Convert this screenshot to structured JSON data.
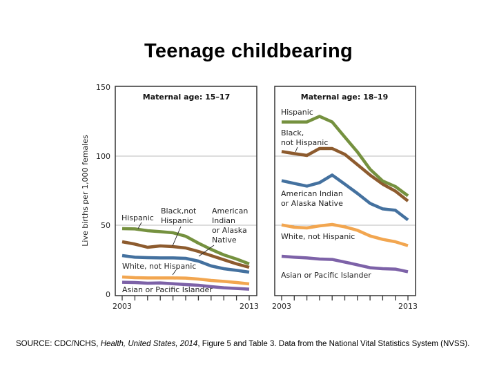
{
  "title": "Teenage childbearing",
  "source": {
    "prefix": "SOURCE: CDC/NCHS, ",
    "italic": "Health, United States, 2014",
    "suffix": ", Figure 5 and Table 3. Data from the National Vital Statistics System (NVSS)."
  },
  "colors": {
    "Hispanic": "#75913f",
    "Black": "#8d5b2e",
    "AIAN": "#44719f",
    "White": "#f2a650",
    "Asian": "#7d62a8"
  },
  "chart_data": [
    {
      "type": "line",
      "title": "Maternal age: 15–17",
      "ylabel": "Live births per 1,000 females",
      "ylim": [
        0,
        150
      ],
      "yticks": [
        "0",
        "50",
        "100",
        "150"
      ],
      "x": [
        2003,
        2004,
        2005,
        2006,
        2007,
        2008,
        2009,
        2010,
        2011,
        2012,
        2013
      ],
      "xtick_labels": [
        "2003",
        "2013"
      ],
      "grid": "horizontal at 50 and 100",
      "series": [
        {
          "key": "Hispanic",
          "label": [
            "Hispanic"
          ],
          "values": [
            47.5,
            47.3,
            46,
            45.3,
            44.5,
            42,
            37,
            32.5,
            28.5,
            25.5,
            22
          ]
        },
        {
          "key": "Black",
          "label": [
            "Black,not",
            "Hispanic"
          ],
          "values": [
            38,
            36.3,
            34,
            35,
            34.5,
            33.5,
            31,
            28,
            25,
            22,
            19.5
          ]
        },
        {
          "key": "AIAN",
          "label": [
            "American",
            "Indian",
            "or Alaska",
            "Native"
          ],
          "values": [
            28,
            26.8,
            26.5,
            26.3,
            26.3,
            26,
            24,
            20.5,
            18.5,
            17.3,
            16
          ]
        },
        {
          "key": "White",
          "label": [
            "White, not Hispanic"
          ],
          "values": [
            12.5,
            12,
            11.8,
            11.8,
            11.8,
            11.7,
            11,
            10,
            9.3,
            8.5,
            7.5
          ]
        },
        {
          "key": "Asian",
          "label": [
            "Asian or Pacific Islander"
          ],
          "values": [
            8.7,
            8.5,
            8,
            8.2,
            7.6,
            7,
            6.5,
            5.5,
            4.7,
            4.2,
            3.7
          ]
        }
      ]
    },
    {
      "type": "line",
      "title": "Maternal age: 18–19",
      "ylim": [
        0,
        150
      ],
      "x": [
        2003,
        2004,
        2005,
        2006,
        2007,
        2008,
        2009,
        2010,
        2011,
        2012,
        2013
      ],
      "xtick_labels": [
        "2003",
        "2013"
      ],
      "grid": "horizontal at 50 and 100",
      "series": [
        {
          "key": "Hispanic",
          "label": [
            "Hispanic"
          ],
          "values": [
            124.7,
            124.7,
            124.7,
            128.8,
            124.7,
            113.8,
            103,
            90.5,
            82,
            78,
            71.3
          ]
        },
        {
          "key": "Black",
          "label": [
            "Black,",
            "not Hispanic"
          ],
          "values": [
            103.3,
            101.8,
            100.5,
            105.5,
            105.5,
            101.3,
            93.8,
            86.3,
            79.7,
            74.7,
            67.5
          ]
        },
        {
          "key": "AIAN",
          "label": [
            "American Indian",
            "or Alaska Native"
          ],
          "values": [
            82.2,
            80.2,
            78.3,
            80.8,
            86.3,
            79.7,
            73,
            65.8,
            61.8,
            60.8,
            53.8
          ]
        },
        {
          "key": "White",
          "label": [
            "White, not Hispanic"
          ],
          "values": [
            50.2,
            48.5,
            48,
            49.5,
            50.5,
            48.8,
            46.3,
            42.2,
            39.7,
            38,
            35.2
          ]
        },
        {
          "key": "Asian",
          "label": [
            "Asian or Pacific Islander"
          ],
          "values": [
            27.5,
            26.8,
            26.3,
            25.5,
            25.2,
            23.3,
            21.3,
            19.2,
            18.5,
            18.2,
            16.3
          ]
        }
      ]
    }
  ]
}
